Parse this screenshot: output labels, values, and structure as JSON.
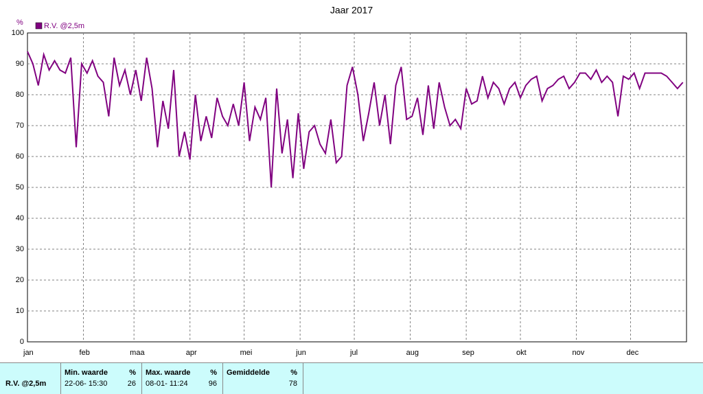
{
  "chart_data": {
    "type": "line",
    "title": "Jaar 2017",
    "y_label": "%",
    "x": [
      0,
      3,
      6,
      9,
      12,
      15,
      18,
      21,
      24,
      27,
      30,
      33,
      36,
      39,
      42,
      45,
      48,
      51,
      54,
      57,
      60,
      63,
      66,
      69,
      72,
      75,
      78,
      81,
      84,
      87,
      90,
      93,
      96,
      99,
      102,
      105,
      108,
      111,
      114,
      117,
      120,
      123,
      126,
      129,
      132,
      135,
      138,
      141,
      144,
      147,
      150,
      153,
      156,
      159,
      162,
      165,
      168,
      171,
      174,
      177,
      180,
      183,
      186,
      189,
      192,
      195,
      198,
      201,
      204,
      207,
      210,
      213,
      216,
      219,
      222,
      225,
      228,
      231,
      234,
      237,
      240,
      243,
      246,
      249,
      252,
      255,
      258,
      261,
      264,
      267,
      270,
      273,
      276,
      279,
      282,
      285,
      288,
      291,
      294,
      297,
      300,
      303,
      306,
      309,
      312,
      315,
      318,
      321,
      324,
      327,
      330,
      333,
      336,
      339,
      342,
      345,
      348,
      351,
      354,
      357,
      360,
      363
    ],
    "series": [
      {
        "name": "R.V. @2,5m",
        "color": "#800080",
        "values": [
          94,
          90,
          83,
          93,
          88,
          91,
          88,
          87,
          92,
          63,
          90,
          87,
          91,
          86,
          84,
          73,
          92,
          83,
          88,
          80,
          88,
          78,
          92,
          82,
          63,
          78,
          69,
          88,
          60,
          68,
          59,
          80,
          65,
          73,
          66,
          79,
          73,
          70,
          77,
          70,
          84,
          65,
          76,
          72,
          79,
          50,
          82,
          61,
          72,
          53,
          74,
          56,
          68,
          70,
          64,
          61,
          72,
          58,
          60,
          83,
          89,
          80,
          65,
          74,
          84,
          70,
          80,
          64,
          83,
          89,
          72,
          73,
          79,
          67,
          83,
          69,
          84,
          76,
          70,
          72,
          69,
          82,
          77,
          78,
          86,
          79,
          84,
          82,
          77,
          82,
          84,
          79,
          83,
          85,
          86,
          78,
          82,
          83,
          85,
          86,
          82,
          84,
          87,
          87,
          85,
          88,
          84,
          86,
          84,
          73,
          86,
          85,
          87,
          82,
          87,
          87,
          87,
          87,
          86,
          84,
          82,
          84
        ]
      }
    ],
    "xlim": [
      0,
      365
    ],
    "xticks": [
      {
        "value": 0,
        "label": "jan"
      },
      {
        "value": 31,
        "label": "feb"
      },
      {
        "value": 59,
        "label": "maa"
      },
      {
        "value": 90,
        "label": "apr"
      },
      {
        "value": 120,
        "label": "mei"
      },
      {
        "value": 151,
        "label": "jun"
      },
      {
        "value": 181,
        "label": "jul"
      },
      {
        "value": 212,
        "label": "aug"
      },
      {
        "value": 243,
        "label": "sep"
      },
      {
        "value": 273,
        "label": "okt"
      },
      {
        "value": 304,
        "label": "nov"
      },
      {
        "value": 334,
        "label": "dec"
      }
    ],
    "ylim": [
      0,
      100
    ],
    "yticks": [
      0,
      10,
      20,
      30,
      40,
      50,
      60,
      70,
      80,
      90,
      100
    ],
    "grid": true
  },
  "summary": {
    "series": "R.V. @2,5m",
    "columns": [
      {
        "header": "Min. waarde",
        "unit": "%",
        "time": "22-06- 15:30",
        "value": 26
      },
      {
        "header": "Max. waarde",
        "unit": "%",
        "time": "08-01- 11:24",
        "value": 96
      },
      {
        "header": "Gemiddelde",
        "unit": "%",
        "value": 78
      }
    ]
  }
}
